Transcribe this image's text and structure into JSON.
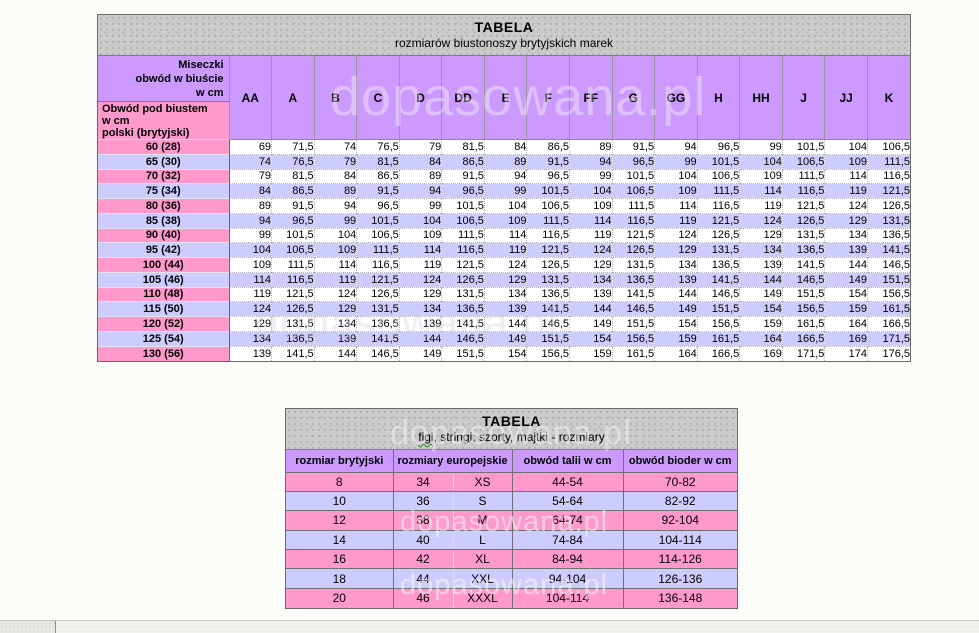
{
  "watermark": {
    "text": "dopasowana.pl"
  },
  "colors": {
    "purple_header": "#CC99FF",
    "pink_row": "#FF99CC",
    "lavender_row": "#CCCCFF",
    "gray_band": "#CBCBCB"
  },
  "bra_table": {
    "title": "TABELA",
    "subtitle": "rozmiarów biustonoszy brytyjskich marek",
    "corner_top": "Miseczki\nobwód w biuście\nw cm",
    "corner_bottom": "Obwód pod biustem\nw cm\npolski (brytyjski)",
    "cup_columns": [
      "AA",
      "A",
      "B",
      "C",
      "D",
      "DD",
      "E",
      "F",
      "FF",
      "G",
      "GG",
      "H",
      "HH",
      "J",
      "JJ",
      "K"
    ],
    "rows": [
      {
        "label": "60 (28)",
        "tone": "pink",
        "values": [
          "69",
          "71,5",
          "74",
          "76,5",
          "79",
          "81,5",
          "84",
          "86,5",
          "89",
          "91,5",
          "94",
          "96,5",
          "99",
          "101,5",
          "104",
          "106,5"
        ]
      },
      {
        "label": "65 (30)",
        "tone": "lav",
        "values": [
          "74",
          "76,5",
          "79",
          "81,5",
          "84",
          "86,5",
          "89",
          "91,5",
          "94",
          "96,5",
          "99",
          "101,5",
          "104",
          "106,5",
          "109",
          "111,5"
        ]
      },
      {
        "label": "70 (32)",
        "tone": "pink",
        "values": [
          "79",
          "81,5",
          "84",
          "86,5",
          "89",
          "91,5",
          "94",
          "96,5",
          "99",
          "101,5",
          "104",
          "106,5",
          "109",
          "111,5",
          "114",
          "116,5"
        ]
      },
      {
        "label": "75 (34)",
        "tone": "lav",
        "values": [
          "84",
          "86,5",
          "89",
          "91,5",
          "94",
          "96,5",
          "99",
          "101,5",
          "104",
          "106,5",
          "109",
          "111,5",
          "114",
          "116,5",
          "119",
          "121,5"
        ]
      },
      {
        "label": "80 (36)",
        "tone": "pink",
        "values": [
          "89",
          "91,5",
          "94",
          "96,5",
          "99",
          "101,5",
          "104",
          "106,5",
          "109",
          "111,5",
          "114",
          "116,5",
          "119",
          "121,5",
          "124",
          "126,5"
        ]
      },
      {
        "label": "85 (38)",
        "tone": "lav",
        "values": [
          "94",
          "96,5",
          "99",
          "101,5",
          "104",
          "106,5",
          "109",
          "111,5",
          "114",
          "116,5",
          "119",
          "121,5",
          "124",
          "126,5",
          "129",
          "131,5"
        ]
      },
      {
        "label": "90 (40)",
        "tone": "pink",
        "values": [
          "99",
          "101,5",
          "104",
          "106,5",
          "109",
          "111,5",
          "114",
          "116,5",
          "119",
          "121,5",
          "124",
          "126,5",
          "129",
          "131,5",
          "134",
          "136,5"
        ]
      },
      {
        "label": "95 (42)",
        "tone": "lav",
        "values": [
          "104",
          "106,5",
          "109",
          "111,5",
          "114",
          "116,5",
          "119",
          "121,5",
          "124",
          "126,5",
          "129",
          "131,5",
          "134",
          "136,5",
          "139",
          "141,5"
        ]
      },
      {
        "label": "100 (44)",
        "tone": "pink",
        "values": [
          "109",
          "111,5",
          "114",
          "116,5",
          "119",
          "121,5",
          "124",
          "126,5",
          "129",
          "131,5",
          "134",
          "136,5",
          "139",
          "141,5",
          "144",
          "146,5"
        ]
      },
      {
        "label": "105 (46)",
        "tone": "lav",
        "values": [
          "114",
          "116,5",
          "119",
          "121,5",
          "124",
          "126,5",
          "129",
          "131,5",
          "134",
          "136,5",
          "139",
          "141,5",
          "144",
          "146,5",
          "149",
          "151,5"
        ]
      },
      {
        "label": "110 (48)",
        "tone": "pink",
        "values": [
          "119",
          "121,5",
          "124",
          "126,5",
          "129",
          "131,5",
          "134",
          "136,5",
          "139",
          "141,5",
          "144",
          "146,5",
          "149",
          "151,5",
          "154",
          "156,5"
        ]
      },
      {
        "label": "115 (50)",
        "tone": "lav",
        "values": [
          "124",
          "126,5",
          "129",
          "131,5",
          "134",
          "136,5",
          "139",
          "141,5",
          "144",
          "146,5",
          "149",
          "151,5",
          "154",
          "156,5",
          "159",
          "161,5"
        ]
      },
      {
        "label": "120 (52)",
        "tone": "pink",
        "values": [
          "129",
          "131,5",
          "134",
          "136,5",
          "139",
          "141,5",
          "144",
          "146,5",
          "149",
          "151,5",
          "154",
          "156,5",
          "159",
          "161,5",
          "164",
          "166,5"
        ]
      },
      {
        "label": "125 (54)",
        "tone": "lav",
        "values": [
          "134",
          "136,5",
          "139",
          "141,5",
          "144",
          "146,5",
          "149",
          "151,5",
          "154",
          "156,5",
          "159",
          "161,5",
          "164",
          "166,5",
          "169",
          "171,5"
        ]
      },
      {
        "label": "130 (56)",
        "tone": "pink",
        "values": [
          "139",
          "141,5",
          "144",
          "146,5",
          "149",
          "151,5",
          "154",
          "156,5",
          "159",
          "161,5",
          "164",
          "166,5",
          "169",
          "171,5",
          "174",
          "176,5"
        ]
      }
    ]
  },
  "briefs_table": {
    "title": "TABELA",
    "subtitle_word": "figi",
    "subtitle_rest": ", stringi, szorty, majtki - rozmiary",
    "columns": [
      "rozmiar brytyjski",
      "rozmiary europejskie",
      "obwód talii w cm",
      "obwód bioder w cm"
    ],
    "rows": [
      {
        "uk": "8",
        "eu": "34",
        "intl": "XS",
        "waist": "44-54",
        "hips": "70-82",
        "tone": "pink"
      },
      {
        "uk": "10",
        "eu": "36",
        "intl": "S",
        "waist": "54-64",
        "hips": "82-92",
        "tone": "lav"
      },
      {
        "uk": "12",
        "eu": "38",
        "intl": "M",
        "waist": "64-74",
        "hips": "92-104",
        "tone": "pink"
      },
      {
        "uk": "14",
        "eu": "40",
        "intl": "L",
        "waist": "74-84",
        "hips": "104-114",
        "tone": "lav"
      },
      {
        "uk": "16",
        "eu": "42",
        "intl": "XL",
        "waist": "84-94",
        "hips": "114-126",
        "tone": "pink"
      },
      {
        "uk": "18",
        "eu": "44",
        "intl": "XXL",
        "waist": "94-104",
        "hips": "126-136",
        "tone": "lav"
      },
      {
        "uk": "20",
        "eu": "46",
        "intl": "XXXL",
        "waist": "104-114",
        "hips": "136-148",
        "tone": "pink"
      }
    ]
  }
}
